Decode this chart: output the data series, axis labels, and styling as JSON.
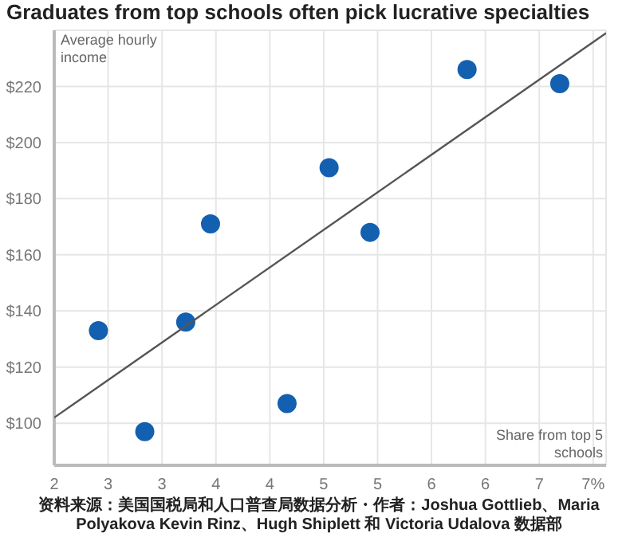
{
  "chart_data": {
    "type": "scatter",
    "title": "Graduates from top schools often pick lucrative specialties",
    "xlabel": "Share from top 5 schools",
    "ylabel": "Average hourly income",
    "annotations": [
      "资料来源：美国国税局和人口普查局数据分析・作者：Joshua Gottlieb、Maria Polyakova Kevin Rinz、Hugh Shiplett 和 Victoria Udalova 数据部"
    ],
    "series": [
      {
        "type": "scatter",
        "color": "#1360b0",
        "marker": "circle",
        "x": [
          2.41,
          2.84,
          3.22,
          3.45,
          4.16,
          4.55,
          4.93,
          5.83,
          6.69
        ],
        "values": [
          133,
          97,
          136,
          171,
          107,
          191,
          168,
          226,
          221
        ]
      },
      {
        "type": "line",
        "color": "#555555",
        "marker": "none",
        "x": [
          2,
          7.12
        ],
        "values": [
          102,
          239
        ]
      }
    ],
    "xlim": [
      2,
      7.12
    ],
    "ylim": [
      85,
      240
    ],
    "xticks": [
      {
        "value": 2,
        "label": "2"
      },
      {
        "value": 2.5,
        "label": "3"
      },
      {
        "value": 3,
        "label": "3"
      },
      {
        "value": 3.5,
        "label": "4"
      },
      {
        "value": 4,
        "label": "4"
      },
      {
        "value": 4.5,
        "label": "5"
      },
      {
        "value": 5,
        "label": "5"
      },
      {
        "value": 5.5,
        "label": "6"
      },
      {
        "value": 6,
        "label": "6"
      },
      {
        "value": 6.5,
        "label": "7"
      },
      {
        "value": 7,
        "label": "7%"
      }
    ],
    "yticks": [
      {
        "value": 100,
        "label": "$100"
      },
      {
        "value": 120,
        "label": "$120"
      },
      {
        "value": 140,
        "label": "$140"
      },
      {
        "value": 160,
        "label": "$160"
      },
      {
        "value": 180,
        "label": "$180"
      },
      {
        "value": 200,
        "label": "$200"
      },
      {
        "value": 220,
        "label": "$220"
      }
    ],
    "grid": true,
    "legend": false
  }
}
